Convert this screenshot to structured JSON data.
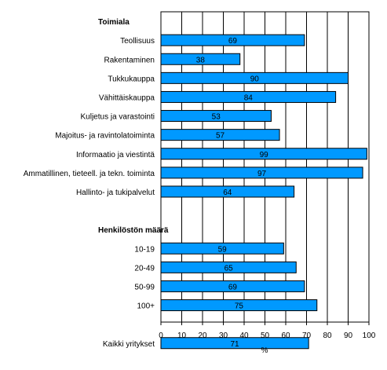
{
  "chart_data": {
    "type": "bar",
    "orientation": "horizontal",
    "xlabel": "%",
    "xlim": [
      0,
      100
    ],
    "xticks": [
      0,
      10,
      20,
      30,
      40,
      50,
      60,
      70,
      80,
      90,
      100
    ],
    "grid": "vertical",
    "bar_color": "#0099ff",
    "groups": [
      {
        "title": "Toimiala",
        "categories": [
          "Teollisuus",
          "Rakentaminen",
          "Tukkukauppa",
          "Vähittäiskauppa",
          "Kuljetus ja varastointi",
          "Majoitus- ja ravintolatoiminta",
          "Informaatio ja viestintä",
          "Ammatillinen, tieteell. ja tekn. toiminta",
          "Hallinto- ja tukipalvelut"
        ],
        "values": [
          69,
          38,
          90,
          84,
          53,
          57,
          99,
          97,
          64
        ]
      },
      {
        "title": "Henkilöstön määrä",
        "categories": [
          "10-19",
          "20-49",
          "50-99",
          "100+"
        ],
        "values": [
          59,
          65,
          69,
          75
        ]
      },
      {
        "title": "",
        "categories": [
          "Kaikki yritykset"
        ],
        "values": [
          71
        ]
      }
    ]
  }
}
